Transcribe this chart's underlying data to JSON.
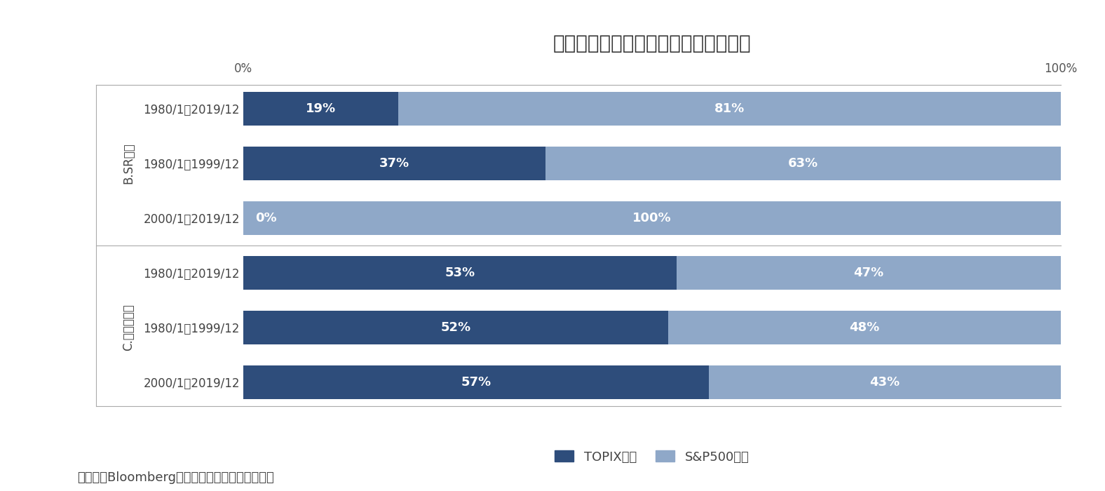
{
  "title_display": "図表７　参照期間を変えた場合の配分",
  "categories": [
    "1980/1～2019/12",
    "1980/1～1999/12",
    "2000/1～2019/12",
    "1980/1～2019/12",
    "1980/1～1999/12",
    "2000/1～2019/12"
  ],
  "group_labels": [
    "B.SR最大",
    "C.リスク最小"
  ],
  "topix": [
    19,
    37,
    0,
    53,
    52,
    57
  ],
  "sp500": [
    81,
    63,
    100,
    47,
    48,
    43
  ],
  "color_topix": "#2E4D7B",
  "color_sp500": "#8FA8C8",
  "color_separator": "#aaaaaa",
  "background_color": "#ffffff",
  "legend_topix": "TOPIX配分",
  "legend_sp500": "S&P500配分",
  "footnote": "（資料）Bloombergよりニッセイ基礎研究所作成",
  "title_fontsize": 20,
  "label_fontsize": 12,
  "bar_label_fontsize": 13,
  "group_label_fontsize": 12,
  "footnote_fontsize": 13
}
